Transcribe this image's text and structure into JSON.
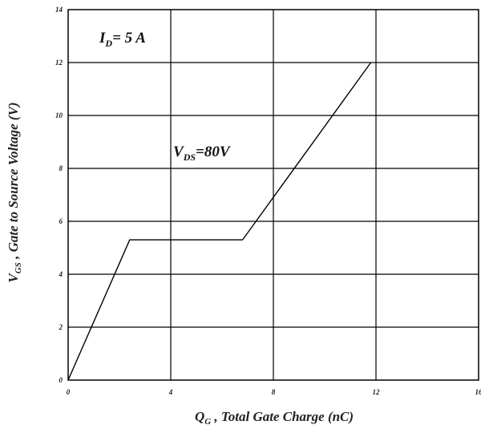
{
  "chart_data": {
    "type": "line",
    "xlabel": {
      "main": "Q",
      "sub": "G",
      "rest": " , Total Gate Charge (nC)"
    },
    "ylabel": {
      "main": "V",
      "sub": "GS",
      "rest": " , Gate to Source Voltage (V)"
    },
    "xlim": [
      0,
      16
    ],
    "ylim": [
      0,
      14
    ],
    "xticks": [
      "0",
      "4",
      "8",
      "12",
      "16"
    ],
    "yticks": [
      "0",
      "2",
      "4",
      "6",
      "8",
      "10",
      "12",
      "14"
    ],
    "grid": true,
    "series": [
      {
        "x": [
          0,
          2.4,
          6.8,
          11.8
        ],
        "y": [
          0,
          5.3,
          5.3,
          12.0
        ]
      }
    ],
    "annotations": [
      {
        "main": "I",
        "sub": "D",
        "rest": "= 5 A"
      },
      {
        "main": "V",
        "sub": "DS",
        "rest": "=80V"
      }
    ]
  }
}
